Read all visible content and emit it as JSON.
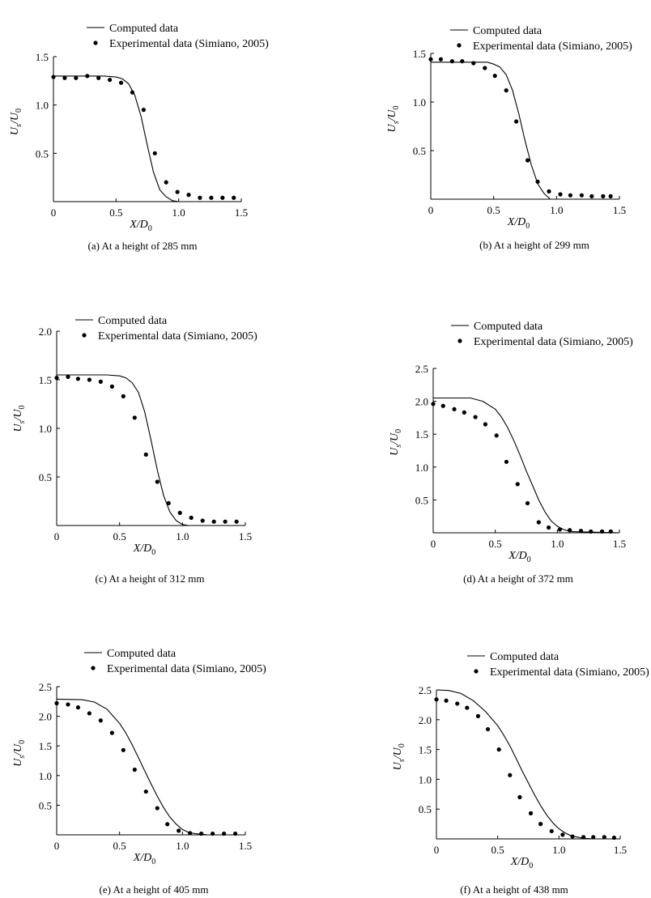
{
  "figure": {
    "x_label": "X/D",
    "x_label_sub": "0",
    "y_label_u": "U",
    "y_label_s": "s",
    "y_label_sep": "/U",
    "y_label_0": "0"
  },
  "legend": {
    "computed": "Computed data",
    "experimental": "Experimental data (Simiano, 2005)"
  },
  "colors": {
    "line": "#000000",
    "marker": "#000000",
    "axis": "#000000",
    "background": "#ffffff"
  },
  "chart_data": [
    {
      "id": "a",
      "type": "line",
      "caption": "(a) At a height of 285 mm",
      "xlim": [
        0,
        1.5
      ],
      "ylim": [
        0,
        1.5
      ],
      "x_ticks": [
        0,
        0.5,
        1.0,
        1.5
      ],
      "x_tick_labels": [
        "0",
        "0.5",
        "1.0",
        "1.5"
      ],
      "y_ticks": [
        0.5,
        1.0,
        1.5
      ],
      "y_tick_labels": [
        "0.5",
        "1.0",
        "1.5"
      ],
      "computed": {
        "x": [
          0,
          0.4,
          0.5,
          0.55,
          0.6,
          0.65,
          0.7,
          0.75,
          0.8,
          0.85,
          0.9,
          0.95,
          1.0,
          1.5
        ],
        "y": [
          1.3,
          1.3,
          1.29,
          1.27,
          1.22,
          1.1,
          0.88,
          0.58,
          0.3,
          0.12,
          0.05,
          0.01,
          0,
          0
        ]
      },
      "experimental": {
        "x": [
          0,
          0.09,
          0.18,
          0.27,
          0.36,
          0.45,
          0.54,
          0.63,
          0.72,
          0.81,
          0.9,
          0.99,
          1.08,
          1.17,
          1.26,
          1.35,
          1.44
        ],
        "y": [
          1.29,
          1.28,
          1.28,
          1.3,
          1.28,
          1.26,
          1.23,
          1.13,
          0.95,
          0.5,
          0.2,
          0.1,
          0.07,
          0.04,
          0.04,
          0.04,
          0.04
        ]
      }
    },
    {
      "id": "b",
      "type": "line",
      "caption": "(b) At a height of 299 mm",
      "xlim": [
        0,
        1.5
      ],
      "ylim": [
        0,
        1.5
      ],
      "x_ticks": [
        0,
        0.5,
        1.0,
        1.5
      ],
      "x_tick_labels": [
        "0",
        "0.5",
        "1.0",
        "1.5"
      ],
      "y_ticks": [
        0.5,
        1.0,
        1.5
      ],
      "y_tick_labels": [
        "0.5",
        "1.0",
        "1.5"
      ],
      "computed": {
        "x": [
          0,
          0.45,
          0.5,
          0.55,
          0.6,
          0.65,
          0.7,
          0.75,
          0.8,
          0.85,
          0.9,
          0.95,
          1.5
        ],
        "y": [
          1.41,
          1.41,
          1.39,
          1.36,
          1.28,
          1.12,
          0.88,
          0.6,
          0.35,
          0.16,
          0.06,
          0,
          0
        ]
      },
      "experimental": {
        "x": [
          0,
          0.08,
          0.17,
          0.25,
          0.34,
          0.43,
          0.51,
          0.6,
          0.68,
          0.77,
          0.85,
          0.94,
          1.03,
          1.11,
          1.2,
          1.28,
          1.37,
          1.43
        ],
        "y": [
          1.44,
          1.44,
          1.42,
          1.42,
          1.4,
          1.35,
          1.27,
          1.12,
          0.8,
          0.4,
          0.18,
          0.08,
          0.05,
          0.04,
          0.04,
          0.03,
          0.03,
          0.03
        ]
      }
    },
    {
      "id": "c",
      "type": "line",
      "caption": "(c) At a height of 312 mm",
      "xlim": [
        0,
        1.5
      ],
      "ylim": [
        0,
        2.0
      ],
      "x_ticks": [
        0,
        0.5,
        1.0,
        1.5
      ],
      "x_tick_labels": [
        "0",
        "0.5",
        "1.0",
        "1.5"
      ],
      "y_ticks": [
        0.5,
        1.0,
        1.5,
        2.0
      ],
      "y_tick_labels": [
        "0.5",
        "1.0",
        "1.5",
        "2.0"
      ],
      "computed": {
        "x": [
          0,
          0.4,
          0.5,
          0.55,
          0.6,
          0.65,
          0.7,
          0.75,
          0.8,
          0.85,
          0.9,
          0.95,
          1.0,
          1.05,
          1.5
        ],
        "y": [
          1.55,
          1.55,
          1.54,
          1.52,
          1.47,
          1.37,
          1.17,
          0.88,
          0.57,
          0.31,
          0.14,
          0.05,
          0.01,
          0,
          0
        ]
      },
      "experimental": {
        "x": [
          0,
          0.09,
          0.17,
          0.26,
          0.35,
          0.44,
          0.53,
          0.62,
          0.71,
          0.8,
          0.89,
          0.98,
          1.07,
          1.16,
          1.25,
          1.34,
          1.43
        ],
        "y": [
          1.52,
          1.53,
          1.51,
          1.5,
          1.48,
          1.43,
          1.33,
          1.11,
          0.73,
          0.45,
          0.23,
          0.13,
          0.08,
          0.05,
          0.04,
          0.04,
          0.04
        ]
      }
    },
    {
      "id": "d",
      "type": "line",
      "caption": "(d) At a height of 372 mm",
      "xlim": [
        0,
        1.5
      ],
      "ylim": [
        0,
        2.5
      ],
      "x_ticks": [
        0,
        0.5,
        1.0,
        1.5
      ],
      "x_tick_labels": [
        "0",
        "0.5",
        "1.0",
        "1.5"
      ],
      "y_ticks": [
        0.5,
        1.0,
        1.5,
        2.0,
        2.5
      ],
      "y_tick_labels": [
        "0.5",
        "1.0",
        "1.5",
        "2.0",
        "2.5"
      ],
      "computed": {
        "x": [
          0,
          0.3,
          0.4,
          0.5,
          0.55,
          0.6,
          0.65,
          0.7,
          0.75,
          0.8,
          0.85,
          0.9,
          0.95,
          1.0,
          1.05,
          1.1,
          1.5
        ],
        "y": [
          2.05,
          2.05,
          2.0,
          1.88,
          1.76,
          1.6,
          1.4,
          1.18,
          0.94,
          0.72,
          0.5,
          0.32,
          0.18,
          0.1,
          0.05,
          0.02,
          0
        ]
      },
      "experimental": {
        "x": [
          0,
          0.08,
          0.17,
          0.25,
          0.34,
          0.42,
          0.51,
          0.59,
          0.68,
          0.76,
          0.85,
          0.93,
          1.02,
          1.1,
          1.19,
          1.27,
          1.36,
          1.43
        ],
        "y": [
          1.96,
          1.93,
          1.88,
          1.83,
          1.76,
          1.65,
          1.48,
          1.08,
          0.74,
          0.45,
          0.16,
          0.08,
          0.05,
          0.04,
          0.03,
          0.02,
          0.02,
          0.02
        ]
      }
    },
    {
      "id": "e",
      "type": "line",
      "caption": "(e) At a height of 405 mm",
      "xlim": [
        0,
        1.5
      ],
      "ylim": [
        0,
        2.5
      ],
      "x_ticks": [
        0,
        0.5,
        1.0,
        1.5
      ],
      "x_tick_labels": [
        "0",
        "0.5",
        "1.0",
        "1.5"
      ],
      "y_ticks": [
        0.5,
        1.0,
        1.5,
        2.0,
        2.5
      ],
      "y_tick_labels": [
        "0.5",
        "1.0",
        "1.5",
        "2.0",
        "2.5"
      ],
      "computed": {
        "x": [
          0,
          0.2,
          0.3,
          0.4,
          0.5,
          0.55,
          0.6,
          0.65,
          0.7,
          0.75,
          0.8,
          0.85,
          0.9,
          0.95,
          1.0,
          1.05,
          1.1,
          1.2,
          1.5
        ],
        "y": [
          2.29,
          2.28,
          2.24,
          2.12,
          1.88,
          1.72,
          1.52,
          1.3,
          1.08,
          0.86,
          0.65,
          0.46,
          0.3,
          0.18,
          0.09,
          0.04,
          0.02,
          0,
          0
        ]
      },
      "experimental": {
        "x": [
          0,
          0.09,
          0.17,
          0.26,
          0.35,
          0.44,
          0.53,
          0.62,
          0.71,
          0.8,
          0.88,
          0.97,
          1.06,
          1.15,
          1.24,
          1.33,
          1.42
        ],
        "y": [
          2.22,
          2.2,
          2.15,
          2.05,
          1.93,
          1.72,
          1.43,
          1.1,
          0.73,
          0.45,
          0.18,
          0.07,
          0.03,
          0.02,
          0.02,
          0.02,
          0.02
        ]
      }
    },
    {
      "id": "f",
      "type": "line",
      "caption": "(f) At a height of 438 mm",
      "xlim": [
        0,
        1.5
      ],
      "ylim": [
        0,
        2.5
      ],
      "x_ticks": [
        0,
        0.5,
        1.0,
        1.5
      ],
      "x_tick_labels": [
        "0",
        "0.5",
        "1.0",
        "1.5"
      ],
      "y_ticks": [
        0.5,
        1.0,
        1.5,
        2.0,
        2.5
      ],
      "y_tick_labels": [
        "0.5",
        "1.0",
        "1.5",
        "2.0",
        "2.5"
      ],
      "computed": {
        "x": [
          0,
          0.1,
          0.2,
          0.3,
          0.4,
          0.5,
          0.55,
          0.6,
          0.65,
          0.7,
          0.75,
          0.8,
          0.85,
          0.9,
          0.95,
          1.0,
          1.05,
          1.1,
          1.2,
          1.3,
          1.5
        ],
        "y": [
          2.5,
          2.49,
          2.44,
          2.32,
          2.14,
          1.9,
          1.74,
          1.56,
          1.35,
          1.14,
          0.94,
          0.74,
          0.56,
          0.4,
          0.27,
          0.17,
          0.1,
          0.05,
          0.01,
          0,
          0
        ]
      },
      "experimental": {
        "x": [
          0,
          0.08,
          0.17,
          0.25,
          0.34,
          0.42,
          0.51,
          0.6,
          0.68,
          0.77,
          0.85,
          0.94,
          1.03,
          1.11,
          1.2,
          1.28,
          1.37,
          1.45
        ],
        "y": [
          2.34,
          2.32,
          2.27,
          2.2,
          2.06,
          1.84,
          1.5,
          1.07,
          0.7,
          0.43,
          0.25,
          0.13,
          0.07,
          0.04,
          0.03,
          0.03,
          0.03,
          0.02
        ]
      }
    }
  ]
}
